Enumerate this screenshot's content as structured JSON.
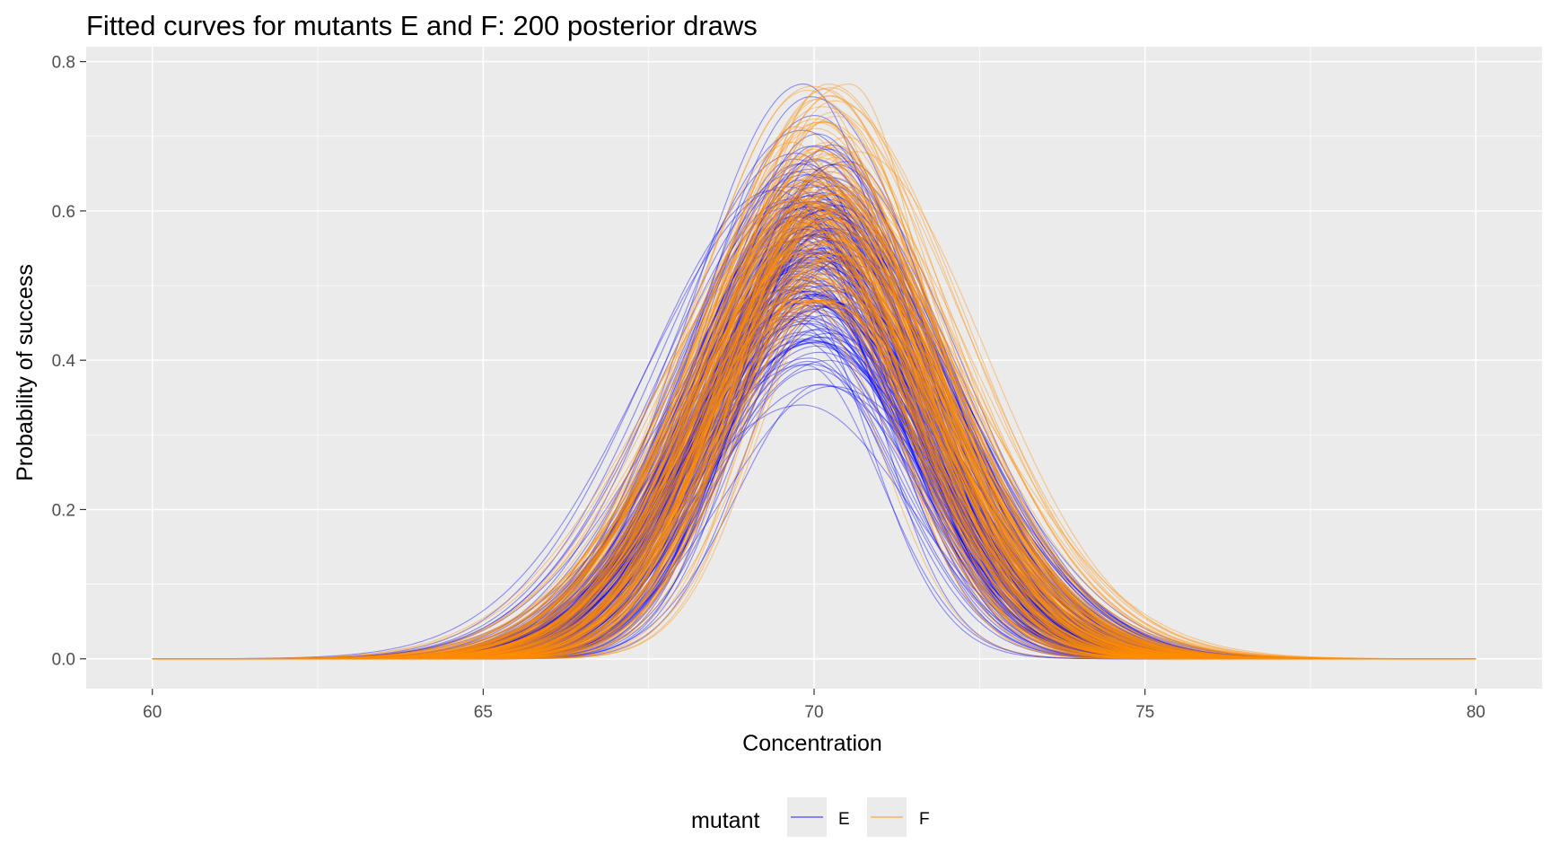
{
  "chart_data": {
    "type": "line",
    "title": "Fitted curves for mutants E and F: 200 posterior draws",
    "xlabel": "Concentration",
    "ylabel": "Probability of success",
    "xlim": [
      59,
      81
    ],
    "ylim": [
      -0.04,
      0.82
    ],
    "x_ticks": [
      60,
      65,
      70,
      75,
      80
    ],
    "y_ticks": [
      0.0,
      0.2,
      0.4,
      0.6,
      0.8
    ],
    "x_tick_labels": [
      "60",
      "65",
      "70",
      "75",
      "80"
    ],
    "y_tick_labels": [
      "0.0",
      "0.2",
      "0.4",
      "0.6",
      "0.8"
    ],
    "x_range": [
      60,
      80
    ],
    "grid": true,
    "background": "#ebebeb",
    "legend": {
      "title": "mutant",
      "position": "bottom",
      "entries": [
        {
          "label": "E",
          "color": "#0000ff"
        },
        {
          "label": "F",
          "color": "#ff8c00"
        }
      ]
    },
    "series": [
      {
        "name": "E",
        "color": "#0000ff",
        "draws": 200,
        "curve_shape": "gaussian",
        "peak_height_range": [
          0.34,
          0.77
        ],
        "peak_location_range": [
          69.4,
          70.6
        ],
        "typical_peak_height": 0.55,
        "typical_peak_location": 70.0
      },
      {
        "name": "F",
        "color": "#ff8c00",
        "draws": 200,
        "curve_shape": "gaussian",
        "peak_height_range": [
          0.48,
          0.77
        ],
        "peak_location_range": [
          69.6,
          70.7
        ],
        "typical_peak_height": 0.6,
        "typical_peak_location": 70.1
      }
    ]
  }
}
